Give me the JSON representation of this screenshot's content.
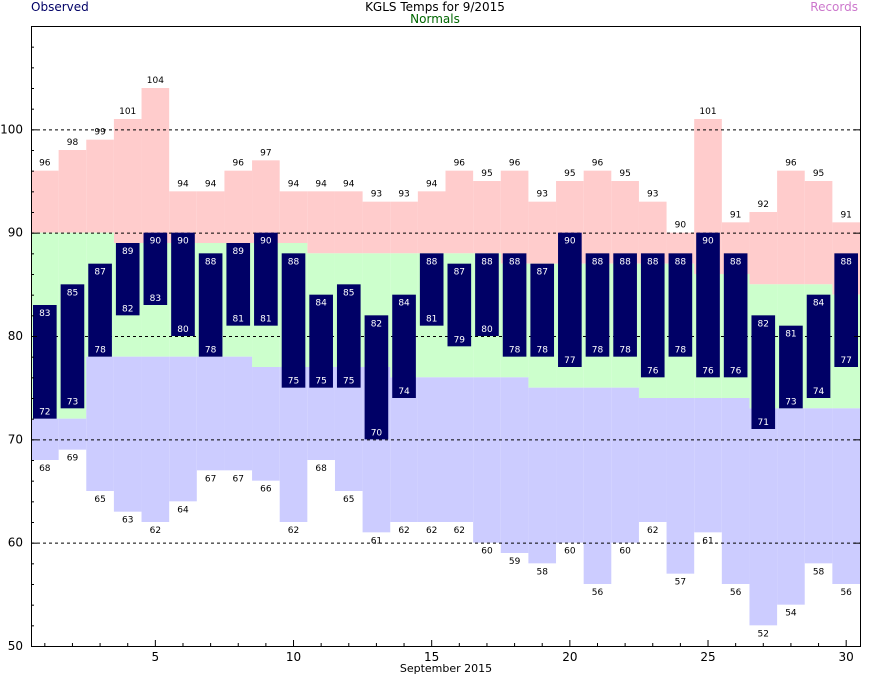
{
  "title": "KGLS Temps for 9/2015",
  "legend": {
    "observed": "Observed",
    "normals": "Normals",
    "records": "Records"
  },
  "colors": {
    "record": "#ffcccc",
    "normal": "#ccffcc",
    "recordLow": "#ccccff",
    "observed": "#000066",
    "grid": "#000000"
  },
  "chart_data": {
    "type": "bar",
    "title": "KGLS Temps for 9/2015",
    "xlabel": "September 2015",
    "ylabel": "",
    "xlim": [
      1,
      30
    ],
    "ylim": [
      50,
      110
    ],
    "x_ticks": [
      5,
      10,
      15,
      20,
      25,
      30
    ],
    "y_ticks": [
      50,
      60,
      70,
      80,
      90,
      100
    ],
    "grid_dashed_y": [
      60,
      70,
      80,
      90,
      100
    ],
    "days": [
      1,
      2,
      3,
      4,
      5,
      6,
      7,
      8,
      9,
      10,
      11,
      12,
      13,
      14,
      15,
      16,
      17,
      18,
      19,
      20,
      21,
      22,
      23,
      24,
      25,
      26,
      27,
      28,
      29,
      30
    ],
    "series": [
      {
        "name": "Observed",
        "high": [
          83,
          85,
          87,
          89,
          90,
          90,
          88,
          89,
          90,
          88,
          84,
          85,
          82,
          84,
          88,
          87,
          88,
          88,
          87,
          90,
          88,
          88,
          88,
          88,
          90,
          88,
          82,
          81,
          84,
          88
        ],
        "low": [
          72,
          73,
          78,
          82,
          83,
          80,
          78,
          81,
          81,
          75,
          75,
          75,
          70,
          74,
          81,
          79,
          80,
          78,
          78,
          77,
          78,
          78,
          76,
          78,
          76,
          76,
          71,
          73,
          74,
          77
        ]
      },
      {
        "name": "Normals",
        "high": [
          90,
          90,
          90,
          89,
          89,
          89,
          89,
          89,
          89,
          89,
          88,
          88,
          88,
          88,
          88,
          88,
          88,
          87,
          87,
          87,
          87,
          87,
          87,
          87,
          86,
          86,
          85,
          85,
          85,
          84
        ],
        "low": [
          72,
          72,
          78,
          78,
          78,
          78,
          78,
          78,
          77,
          77,
          77,
          77,
          77,
          76,
          76,
          76,
          76,
          76,
          75,
          75,
          75,
          75,
          74,
          74,
          74,
          74,
          73,
          73,
          73,
          73
        ]
      },
      {
        "name": "Records",
        "high": [
          96,
          98,
          99,
          101,
          104,
          94,
          94,
          96,
          97,
          94,
          94,
          94,
          93,
          93,
          94,
          96,
          95,
          96,
          93,
          95,
          96,
          95,
          93,
          90,
          101,
          91,
          92,
          96,
          95,
          91
        ],
        "low": [
          68,
          69,
          65,
          63,
          62,
          64,
          67,
          67,
          66,
          62,
          68,
          65,
          61,
          62,
          62,
          62,
          60,
          59,
          58,
          60,
          56,
          60,
          62,
          57,
          61,
          56,
          52,
          54,
          58,
          56
        ]
      }
    ]
  }
}
